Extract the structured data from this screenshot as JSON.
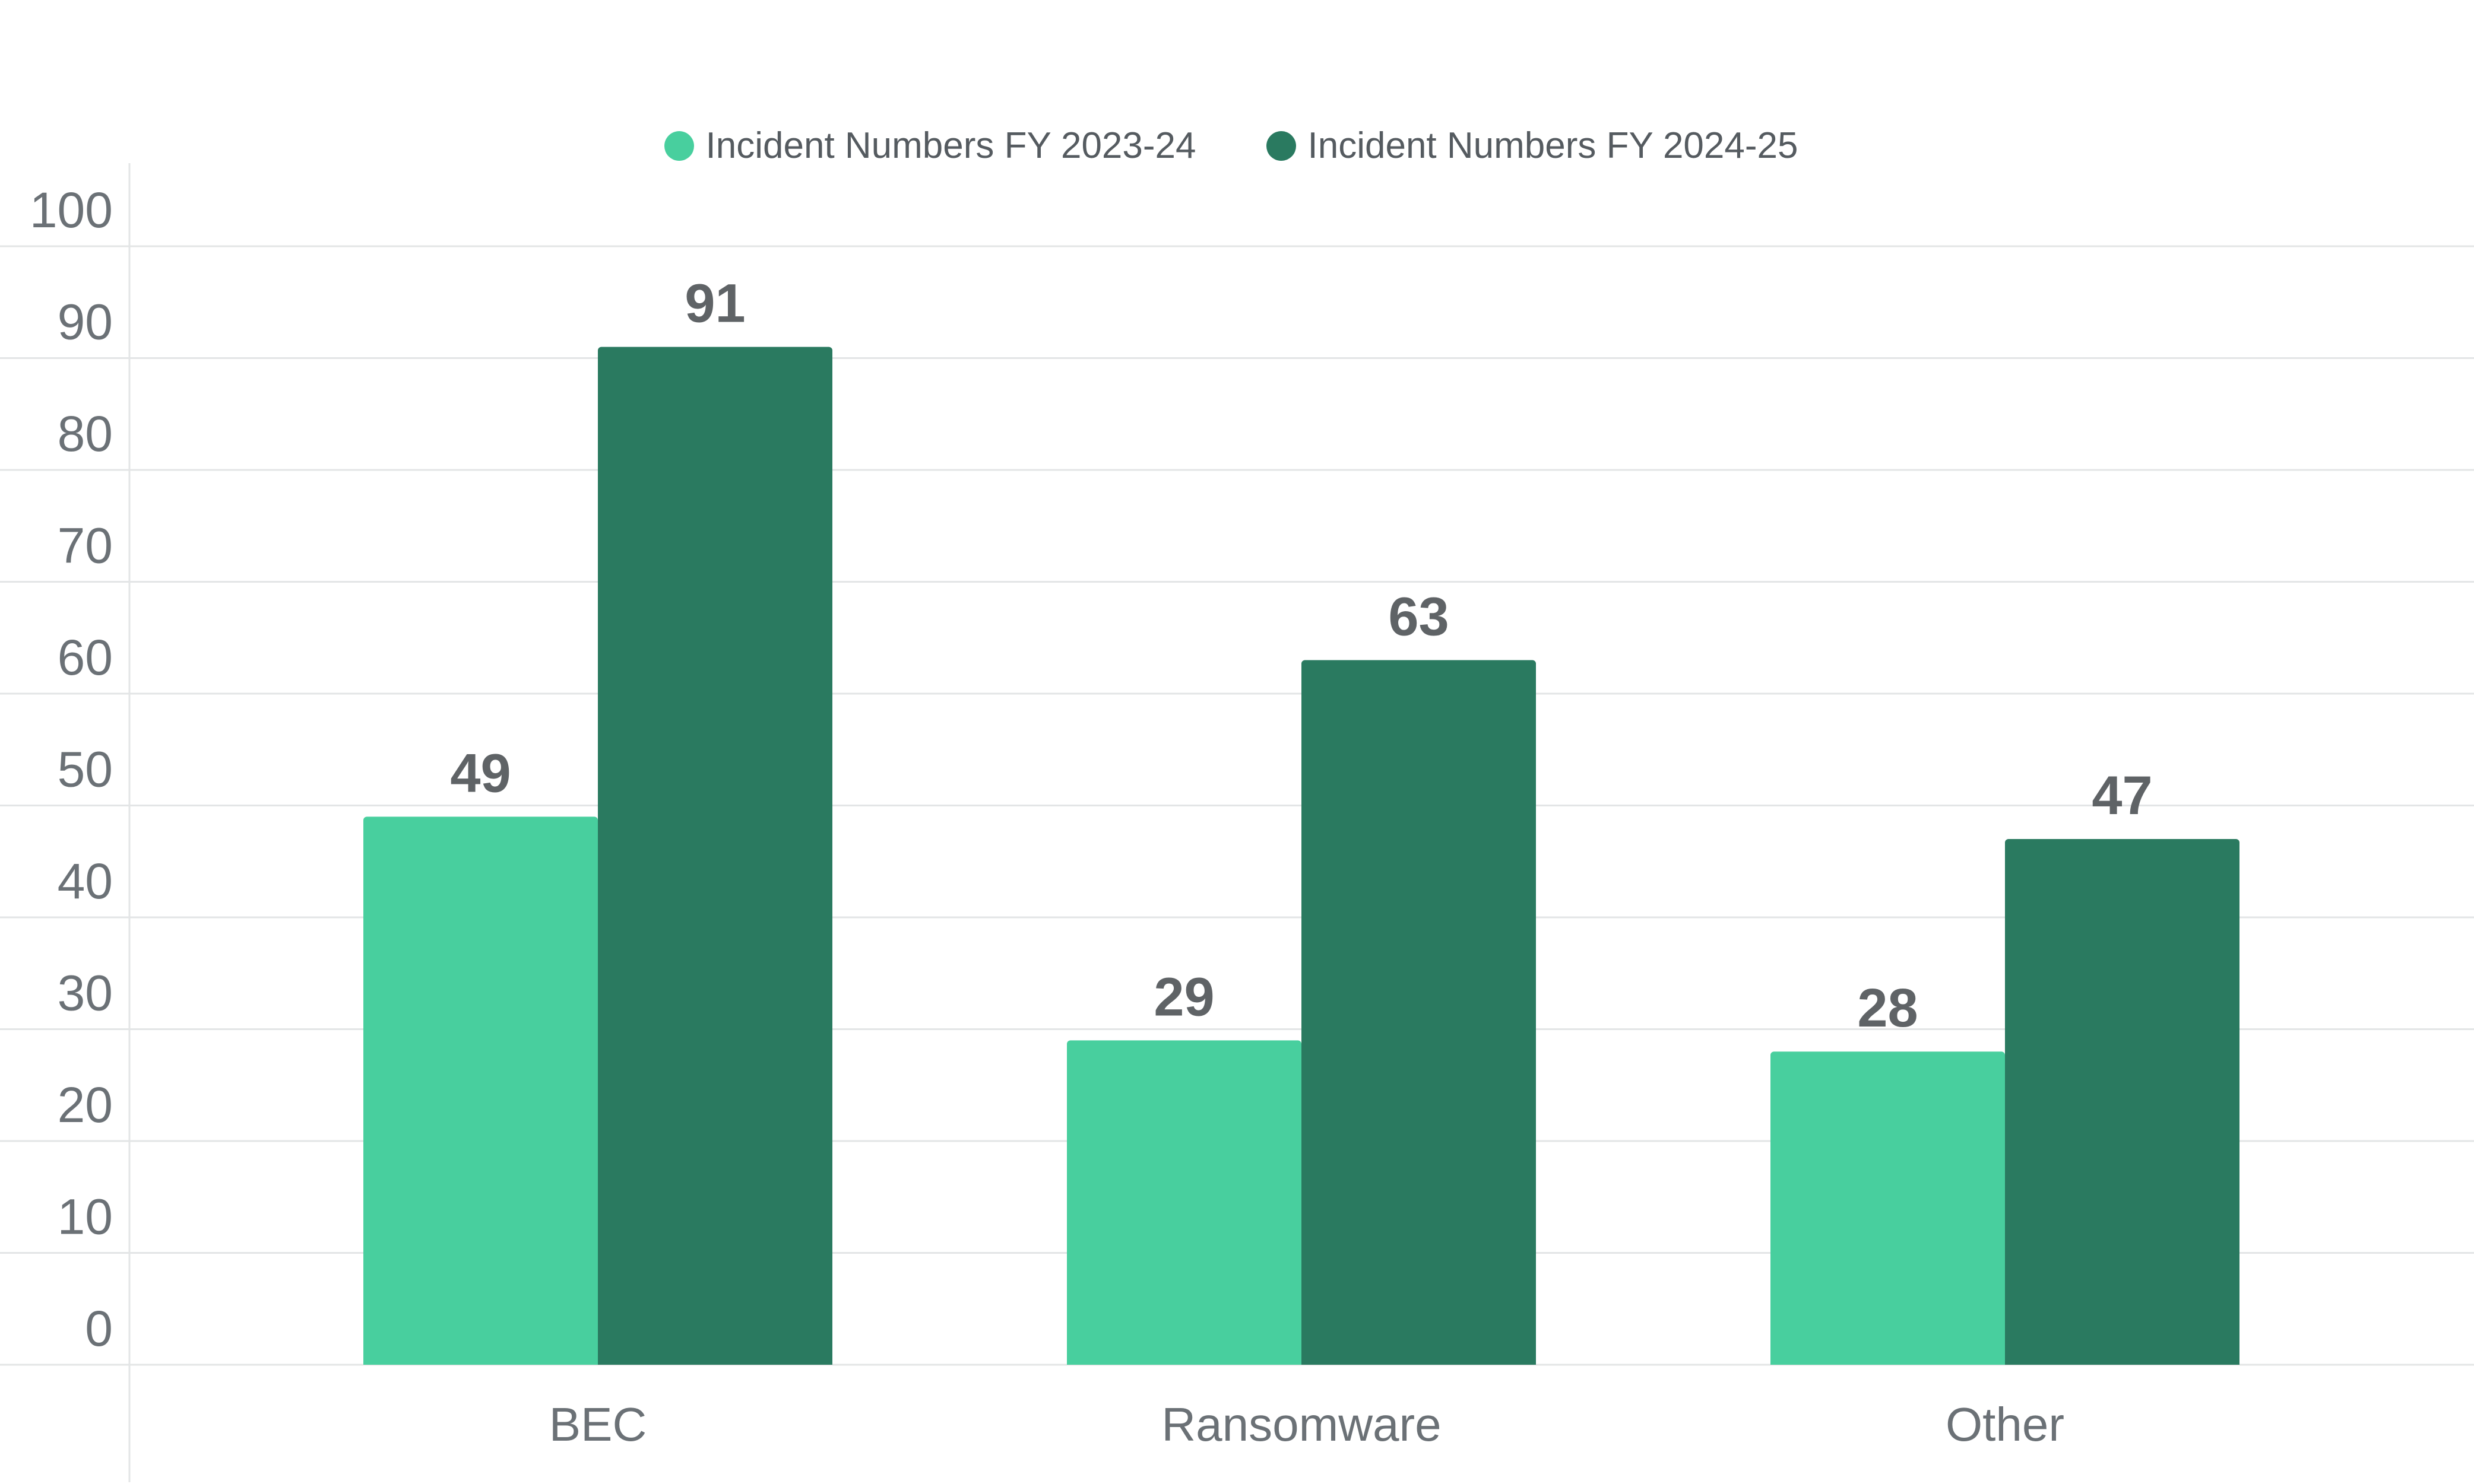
{
  "chart_data": {
    "type": "bar",
    "categories": [
      "BEC",
      "Ransomware",
      "Other"
    ],
    "series": [
      {
        "name": "Incident Numbers FY 2023-24",
        "values": [
          49,
          29,
          28
        ],
        "color": "#48cf9e"
      },
      {
        "name": "Incident Numbers FY 2024-25",
        "values": [
          91,
          63,
          47
        ],
        "color": "#2a7a60"
      }
    ],
    "title": "",
    "xlabel": "",
    "ylabel": "",
    "ylim": [
      0,
      100
    ],
    "yticks": [
      "0",
      "10",
      "20",
      "30",
      "40",
      "50",
      "60",
      "70",
      "80",
      "90",
      "100"
    ],
    "grid": true,
    "legend_position": "top-center",
    "data_labels": true
  }
}
